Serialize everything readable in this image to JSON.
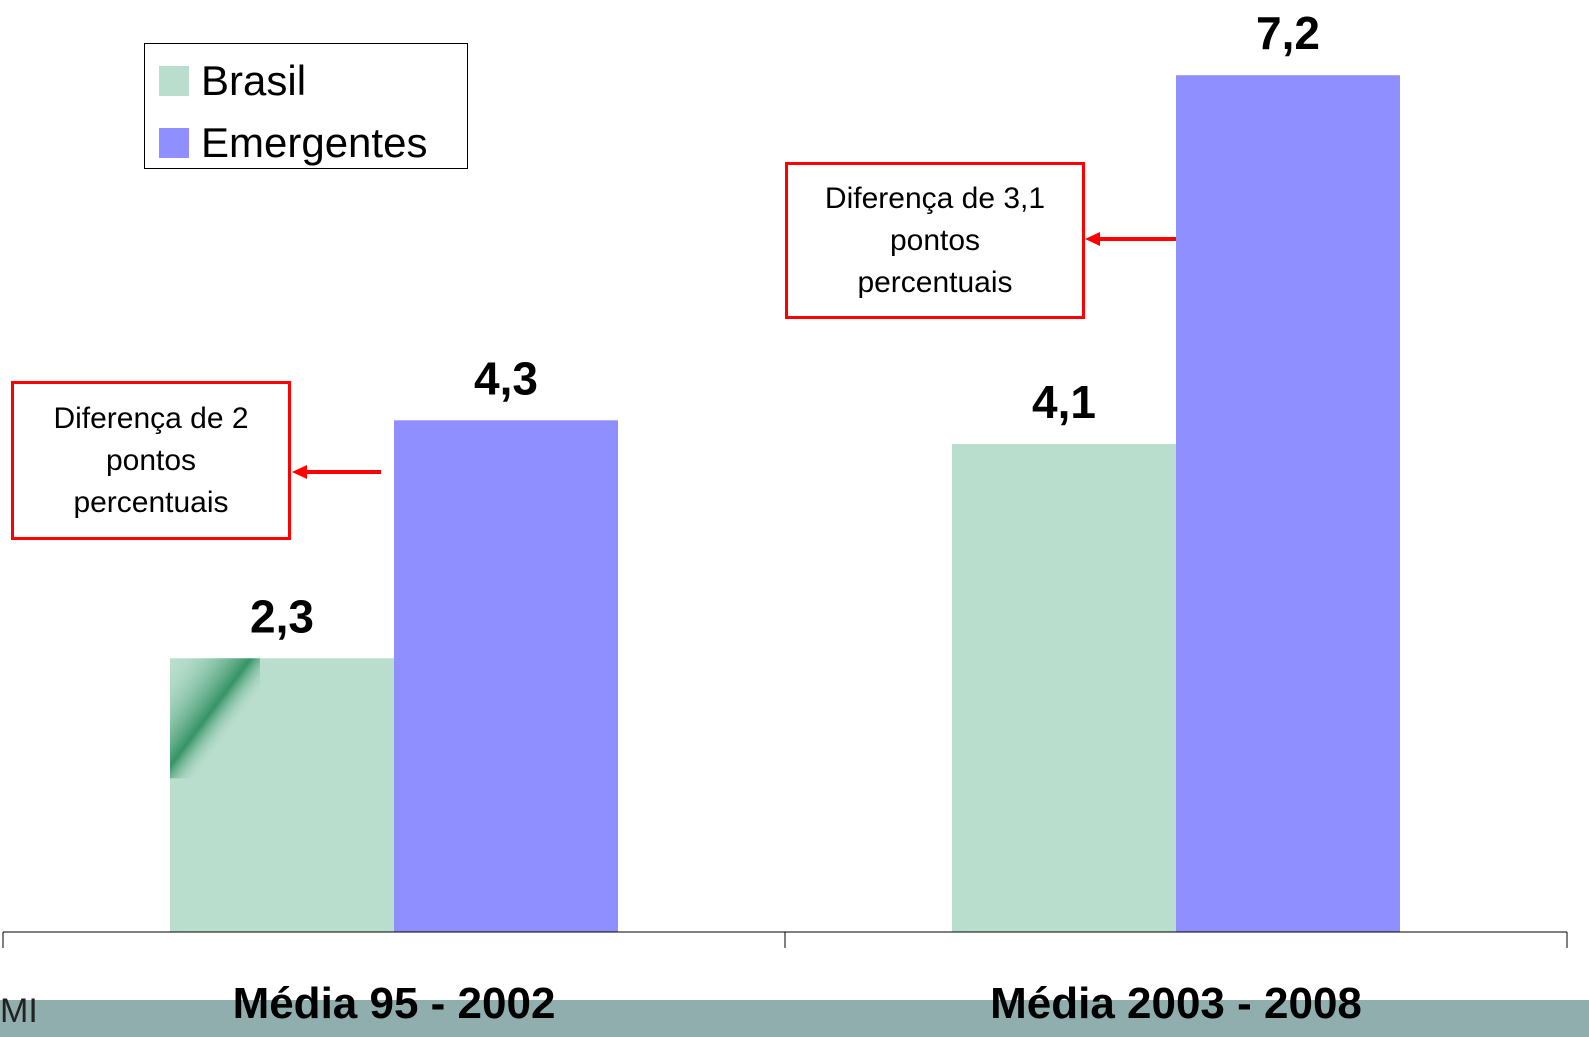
{
  "chart_data": {
    "type": "bar",
    "categories": [
      "Média 95 - 2002",
      "Média 2003 - 2008"
    ],
    "series": [
      {
        "name": "Brasil",
        "values": [
          2.3,
          4.1
        ],
        "labels": [
          "2,3",
          "4,1"
        ],
        "color": "#b9dece"
      },
      {
        "name": "Emergentes",
        "values": [
          4.3,
          7.2
        ],
        "labels": [
          "4,3",
          "7,2"
        ],
        "color": "#8f8fff"
      }
    ],
    "legend": {
      "position": "top-left"
    },
    "grid": false,
    "annotations": [
      {
        "lines": [
          "Diferença de 2",
          "pontos",
          "percentuais"
        ],
        "color": "#ff0000"
      },
      {
        "lines": [
          "Diferença de 3,1",
          "pontos",
          "percentuais"
        ],
        "color": "#ff0000"
      }
    ]
  },
  "footer": {
    "source_fragment": "MI",
    "strip_color": "#8faead"
  }
}
